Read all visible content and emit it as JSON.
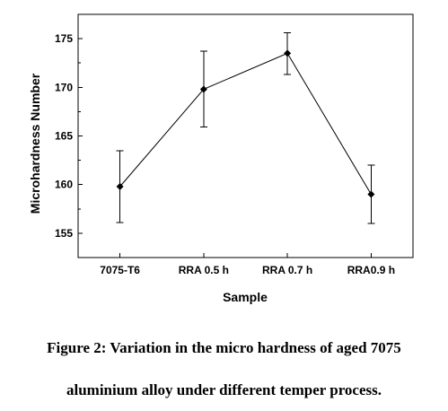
{
  "chart_data": {
    "type": "line",
    "categories": [
      "7075-T6",
      "RRA 0.5 h",
      "RRA 0.7 h",
      "RRA0.9 h"
    ],
    "series": [
      {
        "values": [
          159.8,
          169.8,
          173.5,
          159.0
        ],
        "error_low": [
          156.1,
          165.9,
          171.3,
          156.0
        ],
        "error_high": [
          163.5,
          173.7,
          175.6,
          162.0
        ]
      }
    ],
    "xlabel": "Sample",
    "ylabel": "Microhardness Number",
    "ylim": [
      152.5,
      177.5
    ],
    "yticks": [
      155,
      160,
      165,
      170,
      175
    ],
    "ytick_labels": [
      "155",
      "160",
      "165",
      "170",
      "175"
    ],
    "grid": false,
    "marker": "diamond",
    "line_color": "#000000"
  },
  "figure": {
    "caption_line1": "Figure 2: Variation in the micro hardness of aged 7075",
    "caption_line2": "aluminium alloy under different temper process."
  }
}
